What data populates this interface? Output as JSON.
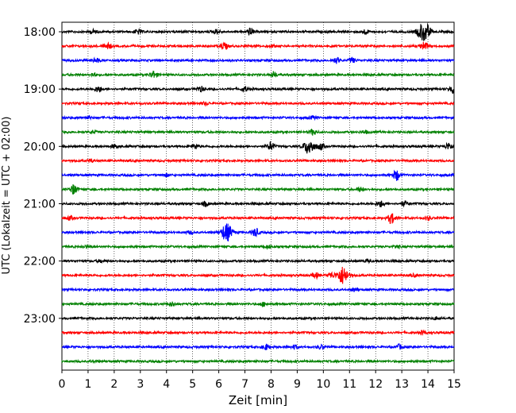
{
  "chart_data": {
    "type": "line",
    "title": "",
    "xlabel": "Zeit  [min]",
    "ylabel": "UTC (Lokalzeit = UTC + 02:00)",
    "xlim": [
      0,
      15
    ],
    "x_ticks": [
      0,
      1,
      2,
      3,
      4,
      5,
      6,
      7,
      8,
      9,
      10,
      11,
      12,
      13,
      14,
      15
    ],
    "x_tick_labels": [
      "0",
      "1",
      "2",
      "3",
      "4",
      "5",
      "6",
      "7",
      "8",
      "9",
      "10",
      "11",
      "12",
      "13",
      "14",
      "15"
    ],
    "y_tick_labels": [
      "18:00",
      "19:00",
      "20:00",
      "21:00",
      "22:00",
      "23:00"
    ],
    "grid": "vertical dotted at each minute",
    "trace_colors": [
      "#000000",
      "#ff0000",
      "#0000ff",
      "#008000"
    ],
    "series": [
      {
        "start": "18:00",
        "events": [
          [
            1.2,
            0.2
          ],
          [
            2.9,
            0.25
          ],
          [
            5.9,
            0.25
          ],
          [
            7.2,
            0.4
          ],
          [
            11.6,
            0.25
          ],
          [
            13.8,
            1.0
          ],
          [
            14.0,
            0.4
          ]
        ]
      },
      {
        "start": "18:15",
        "events": [
          [
            1.75,
            0.35
          ],
          [
            6.2,
            0.4
          ],
          [
            8.0,
            0.15
          ],
          [
            13.85,
            0.45
          ]
        ]
      },
      {
        "start": "18:30",
        "events": [
          [
            1.3,
            0.25
          ],
          [
            10.5,
            0.3
          ],
          [
            11.1,
            0.25
          ]
        ]
      },
      {
        "start": "18:45",
        "events": [
          [
            1.2,
            0.2
          ],
          [
            3.5,
            0.4
          ],
          [
            8.1,
            0.3
          ]
        ]
      },
      {
        "start": "19:00",
        "events": [
          [
            1.4,
            0.35
          ],
          [
            5.3,
            0.3
          ],
          [
            7.0,
            0.25
          ],
          [
            14.95,
            0.45
          ]
        ]
      },
      {
        "start": "19:15",
        "events": [
          [
            5.5,
            0.15
          ]
        ]
      },
      {
        "start": "19:30",
        "events": [
          [
            1.0,
            0.15
          ],
          [
            9.6,
            0.15
          ]
        ]
      },
      {
        "start": "19:45",
        "events": [
          [
            1.2,
            0.15
          ],
          [
            9.6,
            0.3
          ],
          [
            11.6,
            0.15
          ]
        ]
      },
      {
        "start": "20:00",
        "events": [
          [
            2.0,
            0.2
          ],
          [
            5.1,
            0.25
          ],
          [
            8.0,
            0.5
          ],
          [
            9.45,
            0.85
          ],
          [
            9.9,
            0.35
          ],
          [
            14.8,
            0.4
          ]
        ]
      },
      {
        "start": "20:15",
        "events": [
          [
            1.1,
            0.15
          ]
        ]
      },
      {
        "start": "20:30",
        "events": [
          [
            4.0,
            0.15
          ],
          [
            12.8,
            0.6
          ]
        ]
      },
      {
        "start": "20:45",
        "events": [
          [
            0.45,
            0.55
          ],
          [
            11.4,
            0.2
          ]
        ]
      },
      {
        "start": "21:00",
        "events": [
          [
            5.5,
            0.25
          ],
          [
            12.2,
            0.35
          ],
          [
            13.1,
            0.25
          ]
        ]
      },
      {
        "start": "21:15",
        "events": [
          [
            0.3,
            0.2
          ],
          [
            12.6,
            0.6
          ],
          [
            14.0,
            0.2
          ]
        ]
      },
      {
        "start": "21:30",
        "events": [
          [
            6.3,
            1.0
          ],
          [
            7.4,
            0.45
          ],
          [
            4.9,
            0.15
          ]
        ]
      },
      {
        "start": "21:45",
        "events": [
          [
            0.9,
            0.15
          ],
          [
            7.9,
            0.15
          ],
          [
            12.8,
            0.15
          ]
        ]
      },
      {
        "start": "22:00",
        "events": [
          [
            1.5,
            0.15
          ],
          [
            11.7,
            0.15
          ]
        ]
      },
      {
        "start": "22:15",
        "events": [
          [
            9.7,
            0.3
          ],
          [
            10.3,
            0.3
          ],
          [
            10.75,
            1.0
          ],
          [
            13.5,
            0.15
          ]
        ]
      },
      {
        "start": "22:30",
        "events": [
          [
            11.2,
            0.2
          ]
        ]
      },
      {
        "start": "22:45",
        "events": [
          [
            4.2,
            0.2
          ],
          [
            7.7,
            0.2
          ]
        ]
      },
      {
        "start": "23:00",
        "events": [
          [
            14.3,
            0.15
          ]
        ]
      },
      {
        "start": "23:15",
        "events": [
          [
            13.8,
            0.2
          ]
        ]
      },
      {
        "start": "23:30",
        "events": [
          [
            7.8,
            0.3
          ],
          [
            8.9,
            0.2
          ],
          [
            9.9,
            0.2
          ],
          [
            12.9,
            0.25
          ]
        ]
      },
      {
        "start": "23:45",
        "events": [
          [
            1.2,
            0.1
          ]
        ]
      }
    ]
  }
}
